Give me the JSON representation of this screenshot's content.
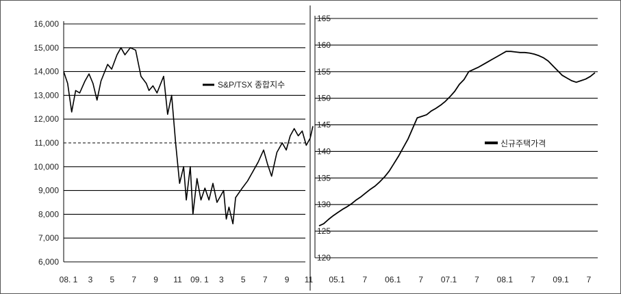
{
  "chart_data": [
    {
      "type": "line",
      "title": "",
      "xlabel": "",
      "ylabel": "",
      "ylim": [
        6000,
        16000
      ],
      "y_ticks": [
        6000,
        7000,
        8000,
        9000,
        10000,
        11000,
        12000,
        13000,
        14000,
        15000,
        16000
      ],
      "y_tick_labels": [
        "6,000",
        "7,000",
        "8,000",
        "9,000",
        "10,000",
        "11,000",
        "12,000",
        "13,000",
        "14,000",
        "15,000",
        "16,000"
      ],
      "x_tick_labels": [
        "08. 1",
        "3",
        "5",
        "7",
        "9",
        "11",
        "09. 1",
        "3",
        "5",
        "7",
        "9",
        "11"
      ],
      "grid": "horizontal",
      "reference_line": {
        "y": 11000,
        "style": "dashed"
      },
      "legend_position": "upper-right",
      "series": [
        {
          "name": "S&P/TSX 종합지수",
          "color": "#000000",
          "points": [
            [
              0.0,
              14000
            ],
            [
              0.3,
              13500
            ],
            [
              0.6,
              12300
            ],
            [
              0.9,
              13200
            ],
            [
              1.2,
              13100
            ],
            [
              1.6,
              13600
            ],
            [
              1.9,
              13900
            ],
            [
              2.2,
              13500
            ],
            [
              2.5,
              12800
            ],
            [
              2.8,
              13600
            ],
            [
              3.3,
              14300
            ],
            [
              3.6,
              14100
            ],
            [
              4.0,
              14700
            ],
            [
              4.3,
              15000
            ],
            [
              4.6,
              14700
            ],
            [
              5.0,
              15000
            ],
            [
              5.4,
              14900
            ],
            [
              5.8,
              13800
            ],
            [
              6.2,
              13500
            ],
            [
              6.4,
              13200
            ],
            [
              6.7,
              13400
            ],
            [
              7.0,
              13100
            ],
            [
              7.5,
              13800
            ],
            [
              7.8,
              12200
            ],
            [
              8.1,
              13000
            ],
            [
              8.4,
              11000
            ],
            [
              8.7,
              9300
            ],
            [
              9.0,
              10000
            ],
            [
              9.2,
              8600
            ],
            [
              9.5,
              10000
            ],
            [
              9.7,
              8000
            ],
            [
              10.0,
              9500
            ],
            [
              10.3,
              8600
            ],
            [
              10.6,
              9100
            ],
            [
              10.9,
              8600
            ],
            [
              11.2,
              9300
            ],
            [
              11.5,
              8500
            ],
            [
              11.8,
              8800
            ],
            [
              12.0,
              9000
            ],
            [
              12.2,
              7800
            ],
            [
              12.4,
              8300
            ],
            [
              12.7,
              7600
            ],
            [
              12.9,
              8700
            ],
            [
              13.4,
              9100
            ],
            [
              13.8,
              9400
            ],
            [
              14.2,
              9800
            ],
            [
              14.6,
              10200
            ],
            [
              15.0,
              10700
            ],
            [
              15.3,
              10100
            ],
            [
              15.6,
              9600
            ],
            [
              16.0,
              10600
            ],
            [
              16.4,
              11000
            ],
            [
              16.7,
              10700
            ],
            [
              17.0,
              11300
            ],
            [
              17.3,
              11600
            ],
            [
              17.6,
              11300
            ],
            [
              17.9,
              11500
            ],
            [
              18.2,
              10900
            ],
            [
              18.5,
              11200
            ],
            [
              18.7,
              11700
            ]
          ]
        }
      ]
    },
    {
      "type": "line",
      "title": "",
      "xlabel": "",
      "ylabel": "",
      "ylim": [
        120,
        165
      ],
      "y_ticks": [
        120,
        125,
        130,
        135,
        140,
        145,
        150,
        155,
        160,
        165
      ],
      "y_tick_labels": [
        "120",
        "125",
        "130",
        "135",
        "140",
        "145",
        "150",
        "155",
        "160",
        "165"
      ],
      "x_tick_labels": [
        "05.1",
        "7",
        "06.1",
        "7",
        "07.1",
        "7",
        "08.1",
        "7",
        "09.1",
        "7"
      ],
      "grid": "horizontal",
      "legend_position": "middle-right",
      "series": [
        {
          "name": "신규주택가격",
          "color": "#000000",
          "points": [
            [
              0,
              126.0
            ],
            [
              1,
              126.4
            ],
            [
              2,
              127.2
            ],
            [
              3,
              127.9
            ],
            [
              4,
              128.5
            ],
            [
              5,
              129.1
            ],
            [
              6,
              129.6
            ],
            [
              7,
              130.2
            ],
            [
              8,
              130.9
            ],
            [
              9,
              131.5
            ],
            [
              10,
              132.2
            ],
            [
              11,
              132.9
            ],
            [
              12,
              133.5
            ],
            [
              13,
              134.3
            ],
            [
              14,
              135.2
            ],
            [
              15,
              136.3
            ],
            [
              16,
              137.7
            ],
            [
              17,
              139.1
            ],
            [
              18,
              140.7
            ],
            [
              19,
              142.3
            ],
            [
              20,
              144.3
            ],
            [
              21,
              146.3
            ],
            [
              22,
              146.6
            ],
            [
              23,
              146.9
            ],
            [
              24,
              147.6
            ],
            [
              25,
              148.1
            ],
            [
              26,
              148.7
            ],
            [
              27,
              149.4
            ],
            [
              28,
              150.3
            ],
            [
              29,
              151.3
            ],
            [
              30,
              152.6
            ],
            [
              31,
              153.5
            ],
            [
              32,
              155.0
            ],
            [
              33,
              155.4
            ],
            [
              34,
              155.8
            ],
            [
              35,
              156.3
            ],
            [
              36,
              156.8
            ],
            [
              37,
              157.3
            ],
            [
              38,
              157.8
            ],
            [
              39,
              158.3
            ],
            [
              40,
              158.8
            ],
            [
              41,
              158.8
            ],
            [
              42,
              158.7
            ],
            [
              43,
              158.6
            ],
            [
              44,
              158.6
            ],
            [
              45,
              158.5
            ],
            [
              46,
              158.3
            ],
            [
              47,
              158.0
            ],
            [
              48,
              157.6
            ],
            [
              49,
              157.0
            ],
            [
              50,
              156.1
            ],
            [
              51,
              155.2
            ],
            [
              52,
              154.3
            ],
            [
              53,
              153.8
            ],
            [
              54,
              153.3
            ],
            [
              55,
              153.0
            ],
            [
              56,
              153.3
            ],
            [
              57,
              153.6
            ],
            [
              58,
              154.1
            ],
            [
              59,
              154.8
            ]
          ]
        }
      ]
    }
  ]
}
